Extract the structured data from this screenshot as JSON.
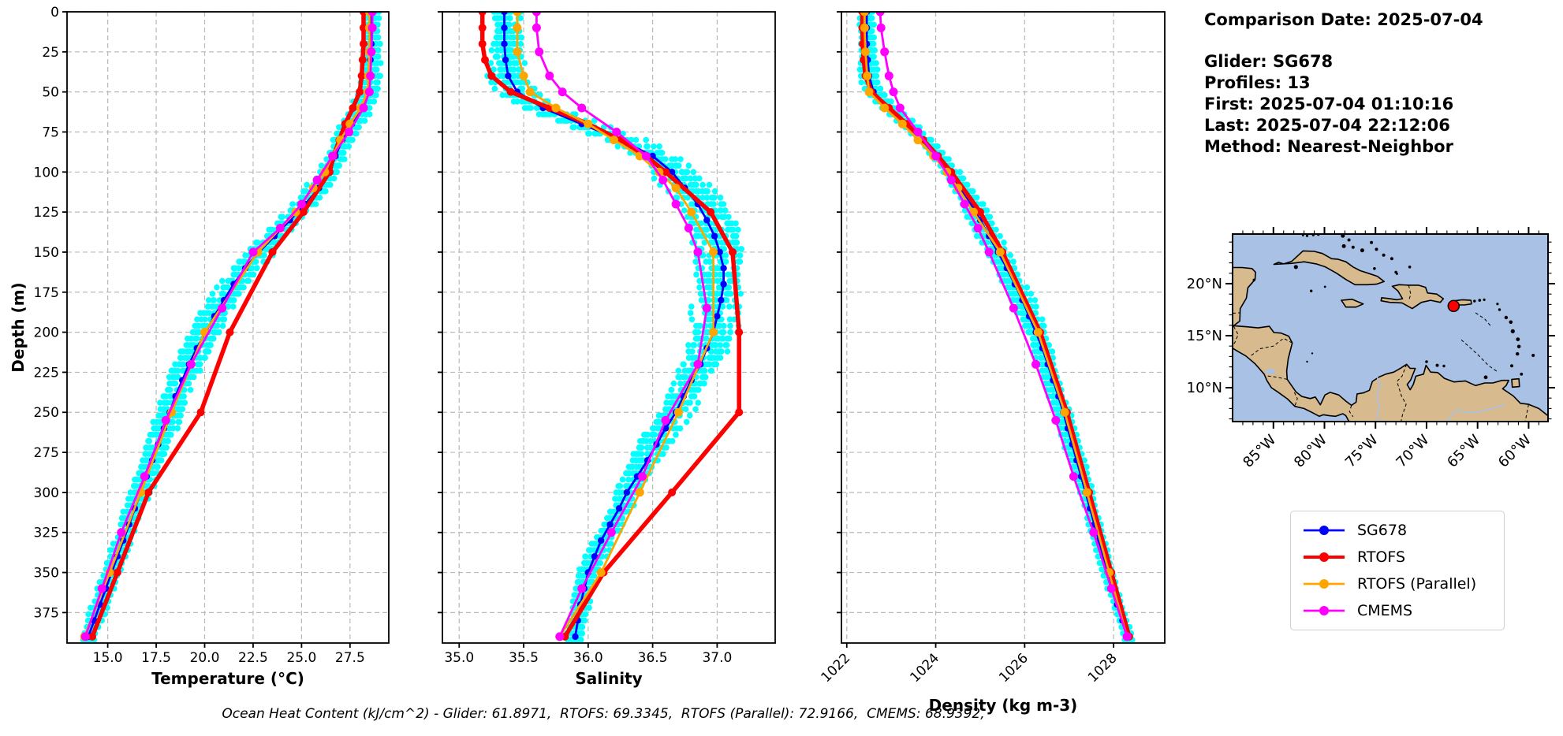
{
  "meta": {
    "title": "Comparison Date: 2025-07-04",
    "lines": [
      "Glider: SG678",
      "Profiles: 13",
      "First: 2025-07-04 01:10:16",
      "Last: 2025-07-04 22:12:06",
      "Method: Nearest-Neighbor"
    ]
  },
  "caption": {
    "text": "Ocean Heat Content (kJ/cm^2) - Glider: 61.8971,  RTOFS: 69.3345,  RTOFS (Parallel): 72.9166,  CMEMS: 68.9392,"
  },
  "legend": {
    "items": [
      {
        "label": "SG678",
        "color": "#0000ff"
      },
      {
        "label": "RTOFS",
        "color": "#ff0000"
      },
      {
        "label": "RTOFS (Parallel)",
        "color": "#ffa500"
      },
      {
        "label": "CMEMS",
        "color": "#ff00ff"
      }
    ]
  },
  "colors": {
    "grid": "#b9b9b9",
    "frame": "#000000",
    "glider_scatter": "#00ffff",
    "map_land": "#d7ba8e",
    "map_water": "#a9c1e4",
    "map_coast": "#000000"
  },
  "map": {
    "lon_range": [
      89.0,
      58.1
    ],
    "lat_range": [
      24.77,
      6.74
    ],
    "lon_ticks": [
      {
        "value": 85,
        "label": "85°W"
      },
      {
        "value": 80,
        "label": "80°W"
      },
      {
        "value": 75,
        "label": "75°W"
      },
      {
        "value": 70,
        "label": "70°W"
      },
      {
        "value": 65,
        "label": "65°W"
      },
      {
        "value": 60,
        "label": "60°W"
      }
    ],
    "lat_ticks": [
      {
        "value": 20,
        "label": "20°N"
      },
      {
        "value": 15,
        "label": "15°N"
      },
      {
        "value": 10,
        "label": "10°N"
      }
    ],
    "marker": {
      "lon": 67.35,
      "lat": 17.85,
      "color": "#ff0000"
    }
  },
  "chart_data": [
    {
      "id": "temperature",
      "type": "line",
      "title": "",
      "xlabel": "Temperature (°C)",
      "ylabel": "Depth (m)",
      "xlim": [
        12.9,
        29.5
      ],
      "ylim": [
        0,
        394
      ],
      "grid": true,
      "show_y_labels": true,
      "xticks": [
        {
          "value": 15.0,
          "label": "15.0"
        },
        {
          "value": 17.5,
          "label": "17.5"
        },
        {
          "value": 20.0,
          "label": "20.0"
        },
        {
          "value": 22.5,
          "label": "22.5"
        },
        {
          "value": 25.0,
          "label": "25.0"
        },
        {
          "value": 27.5,
          "label": "27.5"
        }
      ],
      "yticks": [
        0,
        25,
        50,
        75,
        100,
        125,
        150,
        175,
        200,
        225,
        250,
        275,
        300,
        325,
        350,
        375
      ],
      "glider_scatter": {
        "color": "#00ffff",
        "profiles": 13,
        "spread": 0.5,
        "center": 185,
        "width": 110
      },
      "series": [
        {
          "name": "SG678",
          "color": "#0000ff",
          "lw": 2.8,
          "marker_r": 4.2,
          "depths": [
            0,
            10,
            20,
            30,
            40,
            50,
            60,
            70,
            80,
            90,
            100,
            110,
            120,
            130,
            140,
            150,
            160,
            170,
            180,
            190,
            200,
            210,
            220,
            230,
            240,
            250,
            260,
            270,
            280,
            290,
            300,
            310,
            320,
            330,
            340,
            350,
            360,
            370,
            380,
            390
          ],
          "values": [
            28.6,
            28.6,
            28.6,
            28.55,
            28.5,
            28.45,
            28.1,
            27.6,
            27.1,
            26.75,
            26.45,
            25.9,
            25.2,
            24.4,
            23.6,
            22.8,
            22.1,
            21.5,
            21.0,
            20.5,
            20.05,
            19.6,
            19.2,
            18.85,
            18.5,
            18.2,
            17.9,
            17.6,
            17.3,
            17.0,
            16.7,
            16.4,
            16.1,
            15.8,
            15.5,
            15.2,
            14.9,
            14.6,
            14.3,
            14.0
          ]
        },
        {
          "name": "RTOFS",
          "color": "#ff0000",
          "lw": 5.5,
          "marker_r": 5,
          "depths": [
            0,
            10,
            20,
            30,
            40,
            50,
            60,
            70,
            80,
            90,
            100,
            125,
            150,
            200,
            250,
            300,
            350,
            390
          ],
          "values": [
            28.2,
            28.2,
            28.2,
            28.15,
            28.1,
            28.0,
            27.65,
            27.25,
            26.95,
            26.65,
            26.45,
            25.1,
            23.5,
            21.3,
            19.8,
            17.1,
            15.5,
            14.2
          ]
        },
        {
          "name": "RTOFS (Parallel)",
          "color": "#ffa500",
          "lw": 2.8,
          "marker_r": 5.5,
          "depths": [
            0,
            10,
            25,
            40,
            50,
            60,
            70,
            80,
            90,
            100,
            110,
            125,
            150,
            200,
            250,
            300,
            350,
            390
          ],
          "values": [
            28.5,
            28.5,
            28.5,
            28.45,
            28.4,
            28.05,
            27.5,
            27.0,
            26.6,
            26.2,
            25.6,
            24.7,
            22.75,
            20.0,
            18.3,
            16.7,
            15.1,
            13.8
          ]
        },
        {
          "name": "CMEMS",
          "color": "#ff00ff",
          "lw": 2.8,
          "marker_r": 5.5,
          "depths": [
            0,
            10,
            25,
            40,
            50,
            60,
            75,
            90,
            105,
            120,
            135,
            150,
            185,
            220,
            255,
            290,
            325,
            360,
            390
          ],
          "values": [
            28.65,
            28.65,
            28.6,
            28.55,
            28.5,
            28.2,
            27.45,
            26.6,
            25.8,
            25.0,
            23.9,
            22.5,
            20.9,
            19.3,
            18.0,
            16.9,
            15.7,
            14.7,
            13.85
          ]
        }
      ]
    },
    {
      "id": "salinity",
      "type": "line",
      "title": "",
      "xlabel": "Salinity",
      "ylabel": "",
      "xlim": [
        34.87,
        37.45
      ],
      "ylim": [
        0,
        394
      ],
      "grid": true,
      "show_y_labels": false,
      "xticks": [
        {
          "value": 35.0,
          "label": "35.0"
        },
        {
          "value": 35.5,
          "label": "35.5"
        },
        {
          "value": 36.0,
          "label": "36.0"
        },
        {
          "value": 36.5,
          "label": "36.5"
        },
        {
          "value": 37.0,
          "label": "37.0"
        }
      ],
      "yticks": [
        0,
        25,
        50,
        75,
        100,
        125,
        150,
        175,
        200,
        225,
        250,
        275,
        300,
        325,
        350,
        375
      ],
      "glider_scatter": {
        "color": "#00ffff",
        "profiles": 13,
        "spread": 0.13,
        "center": 140,
        "width": 95
      },
      "series": [
        {
          "name": "SG678",
          "color": "#0000ff",
          "lw": 2.8,
          "marker_r": 4.2,
          "depths": [
            0,
            10,
            20,
            30,
            40,
            50,
            60,
            70,
            80,
            90,
            100,
            110,
            120,
            130,
            140,
            150,
            160,
            170,
            180,
            190,
            200,
            210,
            220,
            230,
            240,
            250,
            260,
            270,
            280,
            290,
            300,
            310,
            320,
            330,
            340,
            350,
            360,
            370,
            380,
            390
          ],
          "values": [
            35.35,
            35.35,
            35.35,
            35.36,
            35.38,
            35.45,
            35.65,
            35.95,
            36.25,
            36.5,
            36.65,
            36.75,
            36.85,
            36.92,
            36.98,
            37.02,
            37.05,
            37.05,
            37.03,
            37.0,
            36.97,
            36.92,
            36.87,
            36.8,
            36.74,
            36.68,
            36.6,
            36.53,
            36.46,
            36.38,
            36.3,
            36.24,
            36.17,
            36.1,
            36.05,
            36.0,
            35.97,
            35.94,
            35.92,
            35.9
          ]
        },
        {
          "name": "RTOFS",
          "color": "#ff0000",
          "lw": 5.5,
          "marker_r": 5,
          "depths": [
            0,
            10,
            20,
            30,
            40,
            50,
            60,
            70,
            80,
            90,
            100,
            125,
            150,
            200,
            250,
            300,
            350,
            390
          ],
          "values": [
            35.18,
            35.18,
            35.18,
            35.2,
            35.25,
            35.4,
            35.7,
            36.0,
            36.25,
            36.45,
            36.6,
            36.95,
            37.12,
            37.17,
            37.17,
            36.65,
            36.12,
            35.82
          ]
        },
        {
          "name": "RTOFS (Parallel)",
          "color": "#ffa500",
          "lw": 2.8,
          "marker_r": 5.5,
          "depths": [
            0,
            10,
            25,
            40,
            50,
            60,
            70,
            80,
            90,
            100,
            110,
            125,
            150,
            200,
            250,
            300,
            350,
            390
          ],
          "values": [
            35.45,
            35.45,
            35.45,
            35.5,
            35.55,
            35.75,
            36.0,
            36.2,
            36.4,
            36.55,
            36.68,
            36.8,
            36.97,
            36.97,
            36.7,
            36.4,
            36.1,
            35.78
          ]
        },
        {
          "name": "CMEMS",
          "color": "#ff00ff",
          "lw": 2.8,
          "marker_r": 5.5,
          "depths": [
            0,
            10,
            25,
            40,
            50,
            60,
            75,
            90,
            105,
            120,
            135,
            150,
            185,
            220,
            255,
            290,
            325,
            360,
            390
          ],
          "values": [
            35.6,
            35.6,
            35.62,
            35.7,
            35.8,
            35.95,
            36.22,
            36.45,
            36.58,
            36.68,
            36.78,
            36.85,
            36.92,
            36.85,
            36.6,
            36.42,
            36.18,
            35.95,
            35.78
          ]
        }
      ]
    },
    {
      "id": "density",
      "type": "line",
      "title": "",
      "xlabel": "Density (kg m-3)",
      "ylabel": "",
      "xlim": [
        1021.88,
        1029.15
      ],
      "ylim": [
        0,
        394
      ],
      "grid": true,
      "show_y_labels": false,
      "rotate_xtick_labels": 45,
      "xticks": [
        {
          "value": 1022,
          "label": "1022"
        },
        {
          "value": 1024,
          "label": "1024"
        },
        {
          "value": 1026,
          "label": "1026"
        },
        {
          "value": 1028,
          "label": "1028"
        }
      ],
      "yticks": [
        0,
        25,
        50,
        75,
        100,
        125,
        150,
        175,
        200,
        225,
        250,
        275,
        300,
        325,
        350,
        375
      ],
      "glider_scatter": {
        "color": "#00ffff",
        "profiles": 13,
        "spread": 0.16,
        "center": 150,
        "width": 110
      },
      "series": [
        {
          "name": "SG678",
          "color": "#0000ff",
          "lw": 2.8,
          "marker_r": 4.2,
          "depths": [
            0,
            10,
            20,
            30,
            40,
            50,
            60,
            70,
            80,
            90,
            100,
            110,
            120,
            130,
            140,
            150,
            160,
            170,
            180,
            190,
            200,
            210,
            220,
            230,
            240,
            250,
            260,
            270,
            280,
            290,
            300,
            310,
            320,
            330,
            340,
            350,
            360,
            370,
            380,
            390
          ],
          "values": [
            1022.45,
            1022.45,
            1022.45,
            1022.47,
            1022.5,
            1022.6,
            1022.95,
            1023.35,
            1023.7,
            1024.0,
            1024.3,
            1024.55,
            1024.8,
            1025.0,
            1025.2,
            1025.4,
            1025.6,
            1025.78,
            1025.95,
            1026.1,
            1026.25,
            1026.4,
            1026.52,
            1026.64,
            1026.76,
            1026.87,
            1026.97,
            1027.07,
            1027.17,
            1027.27,
            1027.37,
            1027.47,
            1027.57,
            1027.67,
            1027.77,
            1027.87,
            1027.97,
            1028.08,
            1028.2,
            1028.32
          ]
        },
        {
          "name": "RTOFS",
          "color": "#ff0000",
          "lw": 5.5,
          "marker_r": 5,
          "depths": [
            0,
            10,
            20,
            30,
            40,
            50,
            60,
            70,
            80,
            90,
            100,
            125,
            150,
            200,
            250,
            300,
            350,
            390
          ],
          "values": [
            1022.35,
            1022.35,
            1022.36,
            1022.38,
            1022.42,
            1022.55,
            1022.95,
            1023.35,
            1023.72,
            1024.05,
            1024.35,
            1025.0,
            1025.5,
            1026.35,
            1026.95,
            1027.45,
            1027.95,
            1028.35
          ]
        },
        {
          "name": "RTOFS (Parallel)",
          "color": "#ffa500",
          "lw": 2.8,
          "marker_r": 5.5,
          "depths": [
            0,
            10,
            25,
            40,
            50,
            60,
            70,
            80,
            90,
            100,
            110,
            125,
            150,
            200,
            250,
            300,
            350,
            390
          ],
          "values": [
            1022.4,
            1022.4,
            1022.42,
            1022.46,
            1022.5,
            1022.85,
            1023.25,
            1023.6,
            1023.95,
            1024.25,
            1024.5,
            1024.85,
            1025.45,
            1026.3,
            1026.9,
            1027.4,
            1027.9,
            1028.3
          ]
        },
        {
          "name": "CMEMS",
          "color": "#ff00ff",
          "lw": 2.8,
          "marker_r": 5.5,
          "depths": [
            0,
            10,
            25,
            40,
            50,
            60,
            75,
            90,
            105,
            120,
            135,
            150,
            185,
            220,
            255,
            290,
            325,
            360,
            390
          ],
          "values": [
            1022.75,
            1022.77,
            1022.85,
            1022.95,
            1023.05,
            1023.2,
            1023.6,
            1024.0,
            1024.35,
            1024.65,
            1024.95,
            1025.2,
            1025.75,
            1026.25,
            1026.7,
            1027.1,
            1027.55,
            1027.95,
            1028.3
          ]
        }
      ]
    }
  ]
}
